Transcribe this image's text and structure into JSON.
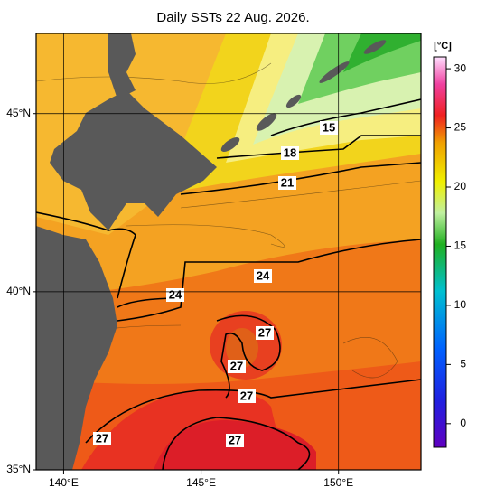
{
  "title": "Daily SSTs 22 Aug. 2026.",
  "map": {
    "lonlim": [
      139,
      153
    ],
    "latlim": [
      35,
      47.25
    ],
    "lonticks": [
      {
        "value": 140,
        "label": "140°E"
      },
      {
        "value": 145,
        "label": "145°E"
      },
      {
        "value": 150,
        "label": "150°E"
      }
    ],
    "latticks": [
      {
        "value": 35,
        "label": "35°N"
      },
      {
        "value": 40,
        "label": "40°N"
      },
      {
        "value": 45,
        "label": "45°N"
      }
    ],
    "contour_labels": [
      "15",
      "18",
      "21",
      "24",
      "24",
      "27",
      "27",
      "27",
      "27",
      "27"
    ]
  },
  "colorbar": {
    "unit": "[°C]",
    "range": [
      -2,
      31
    ],
    "ticks": [
      0,
      5,
      10,
      15,
      20,
      25,
      30
    ]
  }
}
